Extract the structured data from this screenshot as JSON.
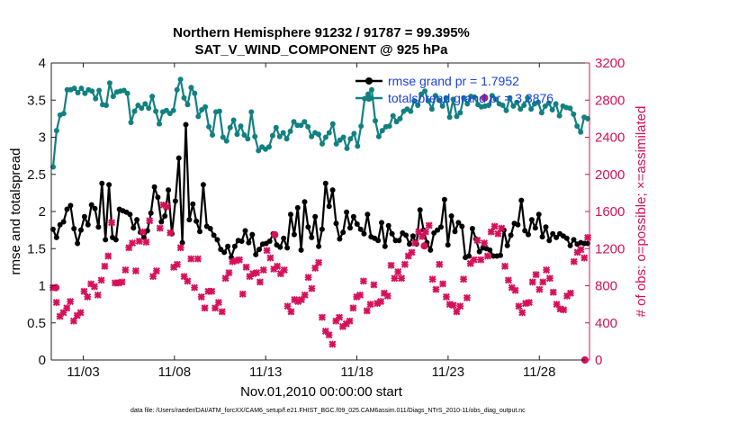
{
  "chart_data": {
    "type": "line",
    "title_line1": "Northern Hemisphere 91232 / 91787 = 99.395%",
    "title_line2": "SAT_V_WIND_COMPONENT @ 925 hPa",
    "xlabel": "Nov.01,2010 00:00:00 start",
    "ylabel_left": "rmse and totalspread",
    "ylabel_right": "# of obs: o=possible; ×=assimilated",
    "footnote": "data file: /Users/raeder/DAI/ATM_forcXX/CAM6_setup/f.e21.FHIST_BGC.f09_025.CAM6assim.011/Diags_NTrS_2010-11/obs_diag_output.nc",
    "xlim": [
      1.25,
      30.75
    ],
    "x_ticks": [
      3,
      8,
      13,
      18,
      23,
      28
    ],
    "x_tick_labels": [
      "11/03",
      "11/08",
      "11/13",
      "11/18",
      "11/23",
      "11/28"
    ],
    "ylim_left": [
      0,
      4
    ],
    "y_ticks_left": [
      "0",
      "0.5",
      "1",
      "1.5",
      "2",
      "2.5",
      "3",
      "3.5",
      "4"
    ],
    "ylim_right": [
      0,
      3200
    ],
    "y_ticks_right": [
      "0",
      "400",
      "800",
      "1200",
      "1600",
      "2000",
      "2400",
      "2800",
      "3200"
    ],
    "grid": false,
    "legend_placement": "top-right",
    "colors": {
      "rmse": "#000000",
      "spread": "#128080",
      "obs": "#d6105a",
      "right_axis": "#d6105a",
      "legend_text": "#1a3fe0"
    },
    "series": [
      {
        "name": "rmse grand pr = 1.7952",
        "axis": "left",
        "marker": "dot",
        "values": [
          1.76,
          1.65,
          1.82,
          1.86,
          2.03,
          2.08,
          1.77,
          1.57,
          1.75,
          1.93,
          1.82,
          2.09,
          2.04,
          1.79,
          2.38,
          1.62,
          2.36,
          1.65,
          1.62,
          2.03,
          2.01,
          1.99,
          1.96,
          1.78,
          1.89,
          1.72,
          1.65,
          1.74,
          1.98,
          2.33,
          2.19,
          1.86,
          1.94,
          2.29,
          1.7,
          2.14,
          2.72,
          1.58,
          3.17,
          1.89,
          2.1,
          1.87,
          1.73,
          2.36,
          1.8,
          1.77,
          1.68,
          1.62,
          1.49,
          1.45,
          1.53,
          1.38,
          1.53,
          1.61,
          1.6,
          1.74,
          1.58,
          1.69,
          1.42,
          1.49,
          1.56,
          1.57,
          1.6,
          1.7,
          1.55,
          1.52,
          1.64,
          1.51,
          1.96,
          1.69,
          2.05,
          1.48,
          2.13,
          1.79,
          1.65,
          1.93,
          1.53,
          1.76,
          2.38,
          2.07,
          2.29,
          1.84,
          1.63,
          1.72,
          1.99,
          1.78,
          1.93,
          1.83,
          1.76,
          1.7,
          1.96,
          1.66,
          1.64,
          1.61,
          1.85,
          1.53,
          1.81,
          1.7,
          1.61,
          1.61,
          1.71,
          1.68,
          1.56,
          1.67,
          1.56,
          2.02,
          1.75,
          1.58,
          1.48,
          1.71,
          1.75,
          1.79,
          2.16,
          1.55,
          1.94,
          1.73,
          1.85,
          1.8,
          1.38,
          1.4,
          1.77,
          1.63,
          1.46,
          1.51,
          1.5,
          1.48,
          1.4,
          1.4,
          1.41,
          1.75,
          1.54,
          1.68,
          1.84,
          1.82,
          2.15,
          1.74,
          1.69,
          1.89,
          1.78,
          1.96,
          1.66,
          1.79,
          1.61,
          1.7,
          1.65,
          1.7,
          1.67,
          1.64,
          1.54,
          1.62,
          1.56,
          1.58,
          1.57,
          1.57
        ]
      },
      {
        "name": "totalspread grand pr = 3.3876",
        "axis": "left",
        "marker": "dot",
        "values": [
          2.6,
          3.09,
          3.3,
          3.32,
          3.64,
          3.64,
          3.66,
          3.6,
          3.66,
          3.59,
          3.64,
          3.62,
          3.52,
          3.63,
          3.44,
          3.43,
          3.73,
          3.55,
          3.61,
          3.62,
          3.63,
          3.59,
          3.2,
          3.35,
          3.43,
          3.39,
          3.45,
          3.39,
          3.55,
          3.35,
          3.18,
          3.34,
          3.36,
          3.32,
          3.36,
          3.64,
          3.78,
          3.53,
          3.44,
          3.67,
          3.59,
          3.28,
          3.37,
          3.41,
          3.14,
          3.03,
          3.34,
          3.35,
          3.0,
          2.95,
          3.13,
          3.23,
          3.04,
          3.15,
          3.03,
          2.98,
          3.34,
          3.01,
          2.82,
          2.87,
          2.84,
          2.87,
          3.02,
          3.13,
          3.01,
          3.06,
          2.98,
          3.08,
          3.21,
          3.16,
          3.16,
          3.21,
          3.14,
          3.01,
          3.06,
          3.04,
          2.91,
          3.0,
          3.06,
          3.18,
          2.91,
          2.96,
          3.0,
          2.85,
          2.98,
          3.05,
          2.88,
          3.15,
          3.52,
          3.58,
          3.64,
          3.22,
          3.01,
          3.09,
          3.14,
          3.15,
          3.29,
          3.21,
          3.25,
          3.35,
          3.38,
          3.35,
          3.49,
          3.43,
          3.58,
          3.62,
          3.49,
          3.38,
          3.56,
          3.5,
          3.42,
          3.53,
          3.27,
          3.51,
          3.28,
          3.33,
          3.53,
          3.45,
          3.55,
          3.54,
          3.44,
          3.41,
          3.42,
          3.43,
          3.56,
          3.51,
          3.45,
          3.43,
          3.36,
          3.53,
          3.42,
          3.47,
          3.38,
          3.43,
          3.53,
          3.38,
          3.45,
          3.47,
          3.33,
          3.42,
          3.46,
          3.37,
          3.45,
          3.29,
          3.42,
          3.4,
          3.39,
          3.31,
          3.15,
          3.07,
          3.27,
          3.25
        ]
      },
      {
        "name": "# obs possible",
        "axis": "right",
        "marker": "circle",
        "points": [
          [
            1.5,
            780
          ],
          [
            13.5,
            1350
          ],
          [
            21.7,
            1230
          ],
          [
            25.0,
            2825
          ],
          [
            30.5,
            0
          ]
        ]
      },
      {
        "name": "# obs assimilated",
        "axis": "right",
        "marker": "x",
        "values": [
          780,
          620,
          470,
          510,
          560,
          630,
          420,
          480,
          510,
          740,
          680,
          820,
          790,
          700,
          860,
          1010,
          1120,
          1480,
          830,
          830,
          840,
          970,
          1210,
          1260,
          960,
          1280,
          1380,
          1270,
          1500,
          900,
          960,
          1420,
          1670,
          1650,
          1370,
          1000,
          1030,
          1210,
          900,
          850,
          1090,
          780,
          1090,
          680,
          560,
          740,
          740,
          560,
          620,
          520,
          880,
          940,
          1060,
          1070,
          1080,
          710,
          1000,
          900,
          930,
          940,
          840,
          970,
          1180,
          1100,
          980,
          1010,
          930,
          970,
          580,
          520,
          650,
          630,
          650,
          700,
          890,
          770,
          990,
          1050,
          460,
          310,
          270,
          170,
          420,
          460,
          360,
          390,
          420,
          560,
          680,
          700,
          850,
          530,
          600,
          810,
          610,
          630,
          720,
          690,
          1020,
          880,
          950,
          880,
          1030,
          1120,
          1160,
          1260,
          1380,
          1330,
          1380,
          1450,
          870,
          760,
          1030,
          820,
          680,
          600,
          590,
          520,
          580,
          870,
          670,
          1040,
          1080,
          1290,
          1080,
          1260,
          1120,
          1380,
          1440,
          1360,
          1420,
          1010,
          860,
          780,
          750,
          580,
          510,
          610,
          620,
          840,
          920,
          760,
          840,
          970,
          880,
          730,
          600,
          550,
          540,
          690,
          720,
          1060,
          1160,
          1190,
          1100,
          1320
        ]
      }
    ]
  }
}
